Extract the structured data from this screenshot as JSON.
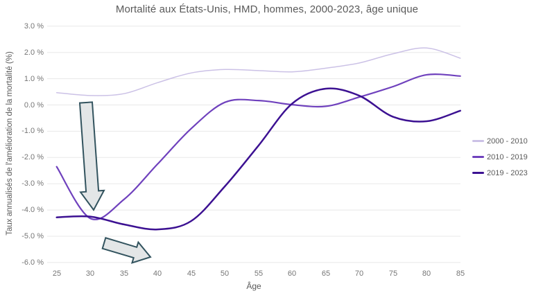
{
  "chart": {
    "title": "Mortalité aux États-Unis, HMD, hommes, 2000-2023, âge unique",
    "x_axis": {
      "title": "Âge",
      "ticks": [
        "25",
        "30",
        "35",
        "40",
        "45",
        "50",
        "55",
        "60",
        "65",
        "70",
        "75",
        "80",
        "85"
      ]
    },
    "y_axis": {
      "title": "Taux annualisés de l'amélioration de la mortalité (%)",
      "tick_labels": [
        "3.0 %",
        "2.0 %",
        "1.0 %",
        "0.0 %",
        "-1.0 %",
        "-2.0 %",
        "-3.0 %",
        "-4.0 %",
        "-5.0 %",
        "-6.0 %"
      ],
      "tick_values": [
        3,
        2,
        1,
        0,
        -1,
        -2,
        -3,
        -4,
        -5,
        -6
      ]
    },
    "legend_entries": [
      "2000 - 2010",
      "2010 - 2019",
      "2019 - 2023"
    ]
  },
  "chart_data": {
    "type": "line",
    "title": "Mortalité aux États-Unis, HMD, hommes, 2000-2023, âge unique",
    "xlabel": "Âge",
    "ylabel": "Taux annualisés de l'amélioration de la mortalité (%)",
    "xlim": [
      25,
      85
    ],
    "ylim": [
      -6,
      3
    ],
    "grid": true,
    "legend_position": "right",
    "x": [
      25,
      30,
      35,
      40,
      45,
      50,
      55,
      60,
      65,
      70,
      75,
      80,
      85
    ],
    "series": [
      {
        "name": "2000 - 2010",
        "color": "#cbc1e6",
        "values": [
          0.47,
          0.36,
          0.43,
          0.85,
          1.22,
          1.35,
          1.31,
          1.26,
          1.4,
          1.6,
          1.95,
          2.17,
          1.78
        ]
      },
      {
        "name": "2010 - 2019",
        "color": "#6f41bd",
        "values": [
          -2.35,
          -4.32,
          -3.6,
          -2.25,
          -0.9,
          0.1,
          0.17,
          0.01,
          -0.05,
          0.3,
          0.7,
          1.15,
          1.1
        ]
      },
      {
        "name": "2019 - 2023",
        "color": "#3c1192",
        "values": [
          -4.28,
          -4.25,
          -4.55,
          -4.74,
          -4.42,
          -3.1,
          -1.55,
          0.05,
          0.62,
          0.35,
          -0.45,
          -0.62,
          -0.22
        ]
      }
    ],
    "annotations": [
      {
        "type": "arrow",
        "direction": "down",
        "description": "arrow pointing down to the mortality-deterioration dip near age 31"
      },
      {
        "type": "arrow",
        "direction": "down-right",
        "description": "arrow pointing down-right below the trough near age 40"
      }
    ]
  },
  "colors": {
    "grid": "#e8e8e8",
    "title_text": "#595959",
    "tick_text": "#757575",
    "arrow_fill": "#e3e6e7",
    "arrow_stroke": "#32535e"
  }
}
